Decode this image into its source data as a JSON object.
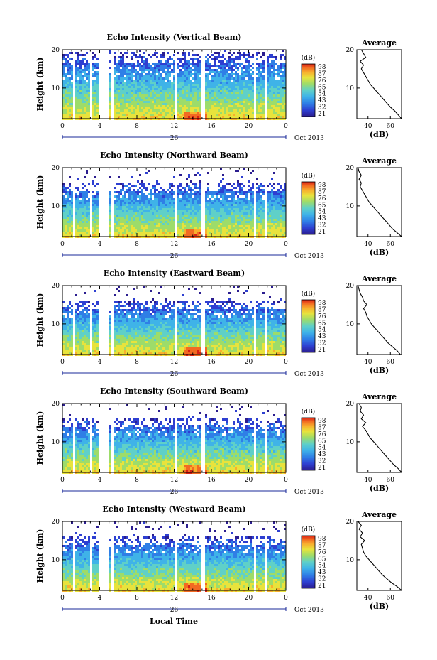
{
  "figure": {
    "common_xlabel": "Local Time",
    "date_label": "Oct 2013",
    "day_label": "26",
    "colorbar_unit": "(dB)",
    "colorbar_ticks": [
      "98",
      "87",
      "76",
      "65",
      "54",
      "43",
      "32",
      "21"
    ],
    "profile_title": "Average",
    "profile_unit": "(dB)"
  },
  "colors": {
    "colormap": [
      "#2b1d8f",
      "#2e3fd1",
      "#2f7fe6",
      "#3fb3e8",
      "#5fd0c8",
      "#9ddc6a",
      "#e8e33c",
      "#f8b02e",
      "#f26a22",
      "#d81f14"
    ],
    "line": "#000000",
    "axis_accent": "#1a2a9a"
  },
  "chart_data": [
    {
      "type": "heatmap",
      "title": "Echo Intensity (Vertical Beam)",
      "ylabel": "Height (km)",
      "x_ticks": [
        "0",
        "4",
        "8",
        "12",
        "16",
        "20",
        "0"
      ],
      "y_ticks": [
        "20",
        "10"
      ],
      "xlim": [
        0,
        24
      ],
      "ylim": [
        2,
        20
      ],
      "value_range_db": [
        21,
        98
      ],
      "profile": {
        "xlabel": "(dB)",
        "x_ticks": [
          "40",
          "60"
        ],
        "xlim": [
          30,
          70
        ],
        "y_ticks": [
          "20",
          "10"
        ],
        "heights": [
          2,
          3,
          4,
          5,
          6,
          7,
          8,
          9,
          10,
          11,
          12,
          13,
          14,
          15,
          16,
          17,
          18,
          19,
          20
        ],
        "values": [
          70,
          67,
          64,
          60,
          57,
          54,
          51,
          48,
          45,
          42,
          40,
          38,
          36,
          34,
          36,
          33,
          38,
          36,
          34
        ]
      }
    },
    {
      "type": "heatmap",
      "title": "Echo Intensity (Northward Beam)",
      "ylabel": "Height (km)",
      "x_ticks": [
        "0",
        "4",
        "8",
        "12",
        "16",
        "20",
        "0"
      ],
      "y_ticks": [
        "20",
        "10"
      ],
      "xlim": [
        0,
        24
      ],
      "ylim": [
        2,
        20
      ],
      "value_range_db": [
        21,
        98
      ],
      "profile": {
        "xlabel": "(dB)",
        "x_ticks": [
          "40",
          "60"
        ],
        "xlim": [
          30,
          70
        ],
        "y_ticks": [
          "20",
          "10"
        ],
        "heights": [
          2,
          3,
          4,
          5,
          6,
          7,
          8,
          9,
          10,
          11,
          12,
          13,
          14,
          15,
          16,
          17,
          18,
          19,
          20
        ],
        "values": [
          70,
          66,
          62,
          59,
          56,
          53,
          50,
          47,
          44,
          41,
          39,
          37,
          35,
          33,
          34,
          32,
          34,
          32,
          31
        ]
      }
    },
    {
      "type": "heatmap",
      "title": "Echo Intensity (Eastward Beam)",
      "ylabel": "Height (km)",
      "x_ticks": [
        "0",
        "4",
        "8",
        "12",
        "16",
        "20",
        "0"
      ],
      "y_ticks": [
        "20",
        "10"
      ],
      "xlim": [
        0,
        24
      ],
      "ylim": [
        2,
        20
      ],
      "value_range_db": [
        21,
        98
      ],
      "profile": {
        "xlabel": "(dB)",
        "x_ticks": [
          "40",
          "60"
        ],
        "xlim": [
          30,
          70
        ],
        "y_ticks": [
          "20",
          "10"
        ],
        "heights": [
          2,
          3,
          4,
          5,
          6,
          7,
          8,
          9,
          10,
          11,
          12,
          13,
          14,
          15,
          16,
          17,
          18,
          19,
          20
        ],
        "values": [
          69,
          66,
          62,
          58,
          55,
          52,
          49,
          46,
          43,
          41,
          39,
          38,
          36,
          39,
          36,
          35,
          33,
          32,
          31
        ]
      }
    },
    {
      "type": "heatmap",
      "title": "Echo Intensity (Southward Beam)",
      "ylabel": "Height (km)",
      "x_ticks": [
        "0",
        "4",
        "8",
        "12",
        "16",
        "20",
        "0"
      ],
      "y_ticks": [
        "20",
        "10"
      ],
      "xlim": [
        0,
        24
      ],
      "ylim": [
        2,
        20
      ],
      "value_range_db": [
        21,
        98
      ],
      "profile": {
        "xlabel": "(dB)",
        "x_ticks": [
          "40",
          "60"
        ],
        "xlim": [
          30,
          70
        ],
        "y_ticks": [
          "20",
          "10"
        ],
        "heights": [
          2,
          3,
          4,
          5,
          6,
          7,
          8,
          9,
          10,
          11,
          12,
          13,
          14,
          15,
          16,
          17,
          18,
          19,
          20
        ],
        "values": [
          70,
          67,
          63,
          60,
          57,
          54,
          51,
          48,
          45,
          42,
          40,
          38,
          35,
          38,
          34,
          36,
          33,
          34,
          32
        ]
      }
    },
    {
      "type": "heatmap",
      "title": "Echo Intensity (Westward Beam)",
      "ylabel": "Height (km)",
      "x_ticks": [
        "0",
        "4",
        "8",
        "12",
        "16",
        "20",
        "0"
      ],
      "y_ticks": [
        "20",
        "10"
      ],
      "xlim": [
        0,
        24
      ],
      "ylim": [
        2,
        20
      ],
      "value_range_db": [
        21,
        98
      ],
      "profile": {
        "xlabel": "(dB)",
        "x_ticks": [
          "40",
          "60"
        ],
        "xlim": [
          30,
          70
        ],
        "y_ticks": [
          "20",
          "10"
        ],
        "heights": [
          2,
          3,
          4,
          5,
          6,
          7,
          8,
          9,
          10,
          11,
          12,
          13,
          14,
          15,
          16,
          17,
          18,
          19,
          20
        ],
        "values": [
          70,
          66,
          61,
          57,
          53,
          50,
          47,
          44,
          41,
          38,
          36,
          35,
          34,
          37,
          33,
          35,
          32,
          34,
          31
        ]
      }
    }
  ]
}
